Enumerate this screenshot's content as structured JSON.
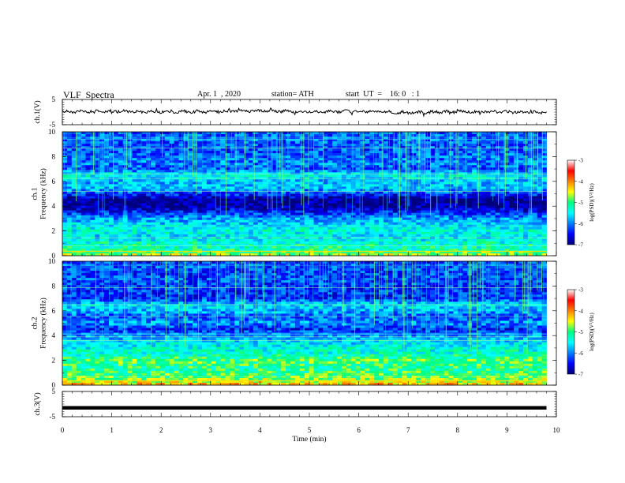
{
  "header": {
    "title": "VLF  Spectra",
    "date": "Apr. 1  , 2020",
    "station": "station= ATH",
    "start": "start  UT  =    16: 0   : 1"
  },
  "colors": {
    "colormap": [
      "#00007a",
      "#0000ff",
      "#0080ff",
      "#00ffff",
      "#00ff80",
      "#ffff00",
      "#ff8000",
      "#ff0000",
      "#ffffff"
    ],
    "waveform": "#000000"
  },
  "chart_data": [
    {
      "type": "line",
      "panel": "ch.1",
      "ylabel": "ch.1(V)",
      "yticks": [
        "5",
        "-5"
      ],
      "ylim": [
        -5,
        5
      ],
      "x": [
        0,
        1,
        2,
        3,
        4,
        5,
        6,
        7,
        8,
        9,
        9.8
      ],
      "values": [
        0.2,
        0.3,
        0.1,
        0.2,
        0.5,
        0.1,
        0.3,
        -0.2,
        0.2,
        0.1,
        -0.1
      ]
    },
    {
      "type": "heatmap",
      "panel": "ch.1",
      "ylabel": "ch.1\nFrequency  (kHz)",
      "yticks": [
        "10",
        "8",
        "6",
        "4",
        "2",
        "0"
      ],
      "ylim": [
        0,
        10
      ],
      "colorbar": {
        "label": "log(PSD)(V²/Hz)",
        "ticks": [
          "-3",
          "-4",
          "-5",
          "-6",
          "-7"
        ],
        "range": [
          -7,
          -3
        ]
      },
      "freq_khz": [
        0,
        0.5,
        1,
        1.5,
        2,
        2.5,
        3,
        3.5,
        4,
        4.5,
        5,
        5.5,
        6,
        6.5,
        7,
        7.5,
        8,
        8.5,
        9,
        9.5,
        10
      ],
      "log_psd": [
        -4.6,
        -5.2,
        -5.3,
        -5.6,
        -5.4,
        -5.6,
        -5.9,
        -6.4,
        -6.9,
        -7.0,
        -6.3,
        -5.7,
        -5.8,
        -5.4,
        -6.2,
        -6.0,
        -6.1,
        -6.2,
        -6.2,
        -6.1,
        -6.2
      ]
    },
    {
      "type": "heatmap",
      "panel": "ch.2",
      "ylabel": "ch.2\nFrequency  (kHz)",
      "yticks": [
        "10",
        "8",
        "6",
        "4",
        "2",
        "0"
      ],
      "ylim": [
        0,
        10
      ],
      "colorbar": {
        "label": "log(PSD)(V²/Hz)",
        "ticks": [
          "-3",
          "-4",
          "-5",
          "-6",
          "-7"
        ],
        "range": [
          -7,
          -3
        ]
      },
      "freq_khz": [
        0,
        0.5,
        1,
        1.5,
        2,
        2.5,
        3,
        3.5,
        4,
        4.5,
        5,
        5.5,
        6,
        6.5,
        7,
        7.5,
        8,
        8.5,
        9,
        9.5,
        10
      ],
      "log_psd": [
        -4.2,
        -4.8,
        -5.0,
        -5.1,
        -4.9,
        -5.3,
        -5.4,
        -5.6,
        -6.0,
        -6.4,
        -5.9,
        -6.2,
        -5.8,
        -5.6,
        -6.4,
        -6.3,
        -6.3,
        -6.2,
        -6.3,
        -6.2,
        -6.3
      ]
    },
    {
      "type": "line",
      "panel": "ch.3",
      "ylabel": "ch.3(V)",
      "yticks": [
        "5",
        "-5"
      ],
      "ylim": [
        -5,
        5
      ],
      "x": [
        0,
        9.8
      ],
      "values": [
        -1.5,
        -1.5
      ]
    }
  ],
  "xaxis": {
    "label": "Time  (min)",
    "ticks": [
      "0",
      "1",
      "2",
      "3",
      "4",
      "5",
      "6",
      "7",
      "8",
      "9",
      "10"
    ],
    "range": [
      0,
      10
    ],
    "data_end": 9.8
  }
}
